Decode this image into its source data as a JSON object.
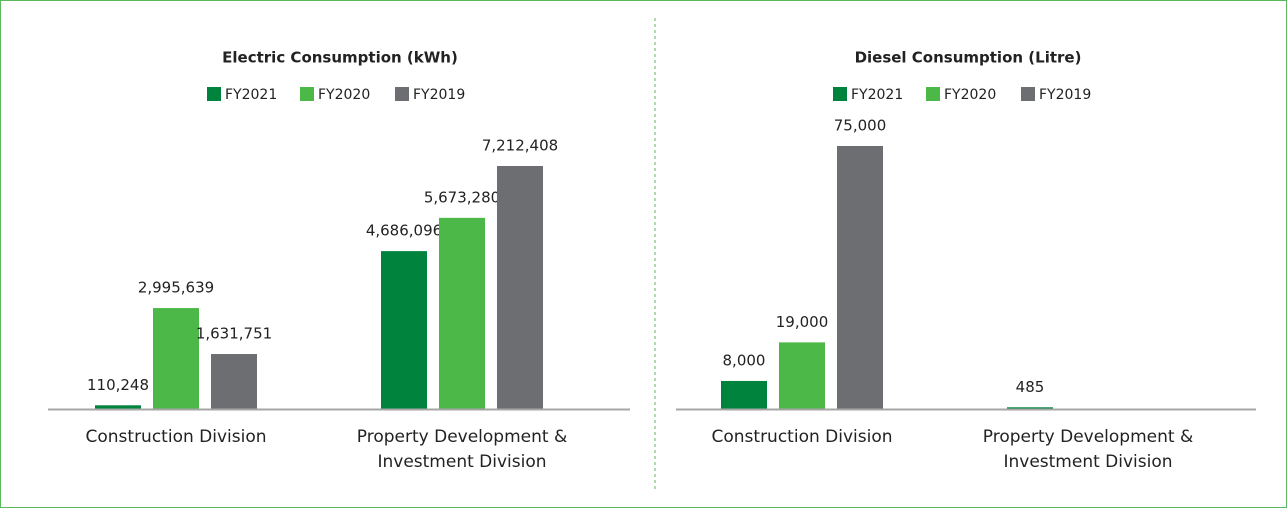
{
  "chart_data": [
    {
      "type": "bar",
      "title": "Electric Consumption (kWh)",
      "categories": [
        "Construction Division",
        "Property Development & Investment Division"
      ],
      "series": [
        {
          "name": "FY2021",
          "color": "#00843d",
          "values": [
            110248,
            4686096
          ],
          "value_labels": [
            "110,248",
            "4,686,096"
          ]
        },
        {
          "name": "FY2020",
          "color": "#4cb848",
          "values": [
            2995639,
            5673280
          ],
          "value_labels": [
            "2,995,639",
            "5,673,280"
          ]
        },
        {
          "name": "FY2019",
          "color": "#6d6e71",
          "values": [
            1631751,
            7212408
          ],
          "value_labels": [
            "1,631,751",
            "7,212,408"
          ]
        }
      ]
    },
    {
      "type": "bar",
      "title": "Diesel Consumption (Litre)",
      "categories": [
        "Construction Division",
        "Property Development & Investment Division"
      ],
      "series": [
        {
          "name": "FY2021",
          "color": "#00843d",
          "values": [
            8000,
            485
          ],
          "value_labels": [
            "8,000",
            "485"
          ]
        },
        {
          "name": "FY2020",
          "color": "#4cb848",
          "values": [
            19000,
            null
          ],
          "value_labels": [
            "19,000",
            null
          ]
        },
        {
          "name": "FY2019",
          "color": "#6d6e71",
          "values": [
            75000,
            null
          ],
          "value_labels": [
            "75,000",
            null
          ]
        }
      ]
    }
  ]
}
